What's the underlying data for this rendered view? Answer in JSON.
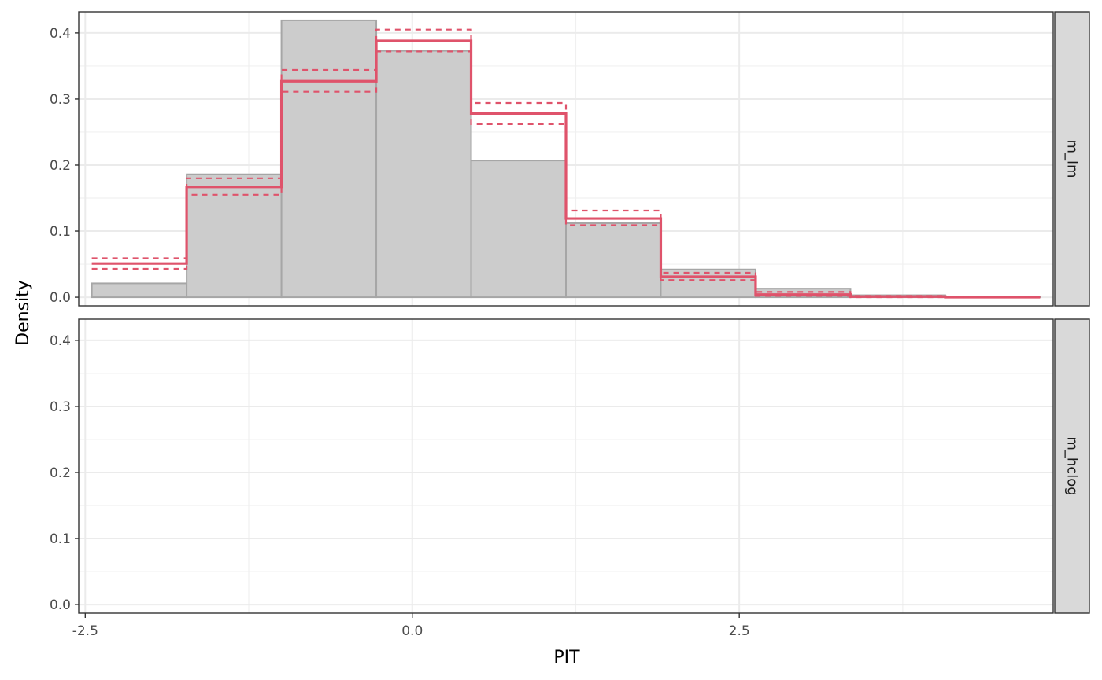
{
  "chart_data": {
    "type": "bar",
    "xlabel": "PIT",
    "ylabel": "Density",
    "xlim": [
      -2.55,
      4.9
    ],
    "ylim": [
      -0.013,
      0.432
    ],
    "x_ticks": [
      -2.5,
      0.0,
      2.5
    ],
    "x_tick_labels": [
      "-2.5",
      "0.0",
      "2.5"
    ],
    "y_ticks": [
      0.0,
      0.1,
      0.2,
      0.3,
      0.4
    ],
    "y_tick_labels": [
      "0.0",
      "0.1",
      "0.2",
      "0.3",
      "0.4"
    ],
    "grid": true,
    "colors": {
      "bars_fill": "#cccccc",
      "bars_stroke": "#a6a6a6",
      "step_line": "#df536b",
      "strip_fill": "#d9d9d9"
    },
    "bin_edges": [
      -2.45,
      -1.725,
      -1.0,
      -0.275,
      0.45,
      1.175,
      1.9,
      2.625,
      3.35,
      4.075,
      4.8
    ],
    "panels": [
      {
        "strip": "m_lm",
        "series": [
          {
            "name": "",
            "kind": "histogram",
            "values": [
              0.021,
              0.186,
              0.419,
              0.373,
              0.207,
              0.112,
              0.042,
              0.013,
              0.003,
              0.001
            ]
          },
          {
            "name": "",
            "kind": "step",
            "values": [
              0.051,
              0.167,
              0.327,
              0.388,
              0.278,
              0.119,
              0.031,
              0.004,
              0.001,
              0.0
            ]
          },
          {
            "name": "",
            "kind": "step-dashed",
            "values": [
              0.059,
              0.18,
              0.344,
              0.405,
              0.294,
              0.131,
              0.037,
              0.008,
              0.002,
              0.001
            ]
          },
          {
            "name": "",
            "kind": "step-dashed",
            "values": [
              0.043,
              0.155,
              0.311,
              0.372,
              0.262,
              0.109,
              0.026,
              0.002,
              0.0,
              0.0
            ]
          }
        ]
      },
      {
        "strip": "m_hclog",
        "series": []
      }
    ]
  }
}
